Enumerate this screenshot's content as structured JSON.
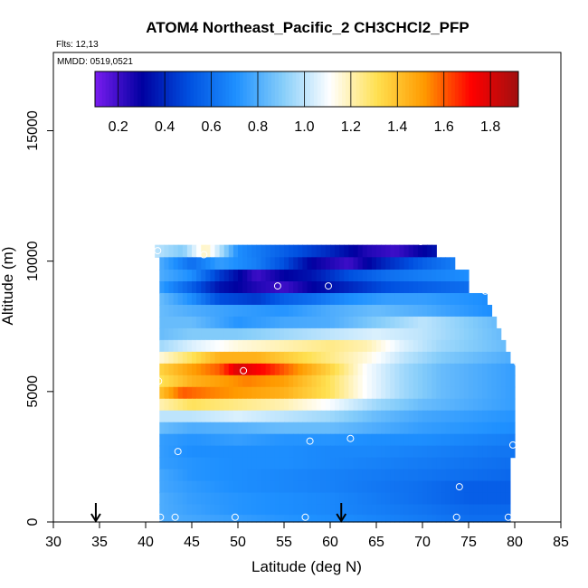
{
  "header": {
    "title": "ATOM4 Northeast_Pacific_2 CH3CHCl2_PFP",
    "flights": "Flts: 12,13",
    "dates": "MMDD: 0519,0521"
  },
  "chart_data": {
    "type": "heatmap",
    "title": "ATOM4 Northeast_Pacific_2 CH3CHCl2_PFP",
    "xlabel": "Latitude (deg N)",
    "ylabel": "Altitude (m)",
    "xlim": [
      30,
      85
    ],
    "ylim": [
      0,
      18000
    ],
    "x_ticks": [
      "30",
      "35",
      "40",
      "45",
      "50",
      "55",
      "60",
      "65",
      "70",
      "75",
      "80",
      "85"
    ],
    "y_ticks": [
      "0",
      "5000",
      "10000",
      "15000"
    ],
    "colorbar": {
      "range": [
        0.1,
        1.92
      ],
      "ticks": [
        "0.2",
        "0.4",
        "0.6",
        "0.8",
        "1.0",
        "1.2",
        "1.4",
        "1.6",
        "1.8"
      ],
      "tick_values": [
        0.2,
        0.4,
        0.6,
        0.8,
        1.0,
        1.2,
        1.4,
        1.6,
        1.8
      ],
      "colors": [
        "#7a1cf0",
        "#0000a0",
        "#0050e0",
        "#1e90ff",
        "#87cefa",
        "#ffffff",
        "#ffe050",
        "#ff9a00",
        "#ff0000",
        "#a01010"
      ]
    },
    "arrows_lat": [
      34.6,
      61.2
    ],
    "bands": [
      {
        "alt": 10400,
        "lat": [
          41.0,
          71.5
        ],
        "knots": [
          [
            41,
            1.0
          ],
          [
            44,
            0.9
          ],
          [
            46.5,
            1.2
          ],
          [
            48,
            1.0
          ],
          [
            50,
            0.7
          ],
          [
            55,
            0.55
          ],
          [
            60,
            0.4
          ],
          [
            64,
            0.25
          ],
          [
            67,
            0.2
          ],
          [
            71.5,
            0.35
          ]
        ]
      },
      {
        "alt": 9900,
        "lat": [
          41.5,
          73.5
        ],
        "knots": [
          [
            41.5,
            0.8
          ],
          [
            45,
            0.6
          ],
          [
            48,
            0.75
          ],
          [
            52,
            0.65
          ],
          [
            55,
            0.5
          ],
          [
            58,
            0.3
          ],
          [
            62,
            0.2
          ],
          [
            66,
            0.4
          ],
          [
            70,
            0.55
          ],
          [
            73.5,
            0.65
          ]
        ]
      },
      {
        "alt": 9450,
        "lat": [
          41.5,
          75.0
        ],
        "knots": [
          [
            41.5,
            0.8
          ],
          [
            45,
            0.7
          ],
          [
            48,
            0.45
          ],
          [
            52,
            0.2
          ],
          [
            55,
            0.3
          ],
          [
            58,
            0.35
          ],
          [
            62,
            0.5
          ],
          [
            66,
            0.6
          ],
          [
            70,
            0.65
          ],
          [
            75,
            0.7
          ]
        ]
      },
      {
        "alt": 9000,
        "lat": [
          41.5,
          75.0
        ],
        "knots": [
          [
            41.5,
            0.75
          ],
          [
            45,
            0.55
          ],
          [
            48,
            0.35
          ],
          [
            52,
            0.25
          ],
          [
            55,
            0.2
          ],
          [
            58,
            0.3
          ],
          [
            62,
            0.4
          ],
          [
            66,
            0.5
          ],
          [
            70,
            0.55
          ],
          [
            75,
            0.6
          ]
        ]
      },
      {
        "alt": 8550,
        "lat": [
          41.5,
          77.0
        ],
        "knots": [
          [
            41.5,
            0.85
          ],
          [
            45,
            0.7
          ],
          [
            48,
            0.5
          ],
          [
            52,
            0.45
          ],
          [
            55,
            0.55
          ],
          [
            58,
            0.6
          ],
          [
            62,
            0.7
          ],
          [
            66,
            0.75
          ],
          [
            70,
            0.75
          ],
          [
            77,
            0.7
          ]
        ]
      },
      {
        "alt": 8100,
        "lat": [
          41.5,
          77.5
        ],
        "knots": [
          [
            41.5,
            0.85
          ],
          [
            45,
            0.8
          ],
          [
            50,
            0.75
          ],
          [
            55,
            0.72
          ],
          [
            60,
            0.8
          ],
          [
            65,
            0.85
          ],
          [
            70,
            0.8
          ],
          [
            77.5,
            0.7
          ]
        ]
      },
      {
        "alt": 7650,
        "lat": [
          41.5,
          78.0
        ],
        "knots": [
          [
            41.5,
            0.85
          ],
          [
            45,
            0.85
          ],
          [
            50,
            0.72
          ],
          [
            55,
            0.78
          ],
          [
            60,
            0.8
          ],
          [
            65,
            0.9
          ],
          [
            70,
            1.0
          ],
          [
            78,
            0.85
          ]
        ]
      },
      {
        "alt": 7200,
        "lat": [
          41.5,
          78.5
        ],
        "knots": [
          [
            41.5,
            0.85
          ],
          [
            45,
            0.9
          ],
          [
            50,
            0.9
          ],
          [
            55,
            0.95
          ],
          [
            60,
            1.0
          ],
          [
            65,
            1.05
          ],
          [
            70,
            1.0
          ],
          [
            78.5,
            0.85
          ]
        ]
      },
      {
        "alt": 6750,
        "lat": [
          41.5,
          79.0
        ],
        "knots": [
          [
            41.5,
            0.95
          ],
          [
            45,
            1.05
          ],
          [
            50,
            1.15
          ],
          [
            55,
            1.2
          ],
          [
            60,
            1.25
          ],
          [
            64,
            1.2
          ],
          [
            68,
            1.05
          ],
          [
            72,
            0.95
          ],
          [
            79,
            0.85
          ]
        ]
      },
      {
        "alt": 6300,
        "lat": [
          41.5,
          79.5
        ],
        "knots": [
          [
            41.5,
            1.15
          ],
          [
            45,
            1.3
          ],
          [
            48,
            1.45
          ],
          [
            52,
            1.45
          ],
          [
            56,
            1.35
          ],
          [
            60,
            1.25
          ],
          [
            64,
            1.15
          ],
          [
            68,
            1.0
          ],
          [
            72,
            0.9
          ],
          [
            79.5,
            0.8
          ]
        ]
      },
      {
        "alt": 5850,
        "lat": [
          41.5,
          80.0
        ],
        "knots": [
          [
            41.5,
            1.35
          ],
          [
            45,
            1.5
          ],
          [
            48,
            1.6
          ],
          [
            50,
            1.8
          ],
          [
            53,
            1.7
          ],
          [
            56,
            1.55
          ],
          [
            60,
            1.35
          ],
          [
            64,
            1.1
          ],
          [
            68,
            0.95
          ],
          [
            72,
            0.85
          ],
          [
            80,
            0.75
          ]
        ]
      },
      {
        "alt": 5400,
        "lat": [
          41.5,
          80.0
        ],
        "knots": [
          [
            41.5,
            1.3
          ],
          [
            45,
            1.45
          ],
          [
            48,
            1.5
          ],
          [
            51,
            1.55
          ],
          [
            55,
            1.5
          ],
          [
            60,
            1.3
          ],
          [
            64,
            1.1
          ],
          [
            68,
            0.95
          ],
          [
            72,
            0.85
          ],
          [
            80,
            0.75
          ]
        ]
      },
      {
        "alt": 4950,
        "lat": [
          41.5,
          80.0
        ],
        "knots": [
          [
            41.5,
            1.4
          ],
          [
            44,
            1.6
          ],
          [
            47,
            1.55
          ],
          [
            51,
            1.5
          ],
          [
            55,
            1.45
          ],
          [
            60,
            1.3
          ],
          [
            64,
            1.1
          ],
          [
            68,
            0.95
          ],
          [
            72,
            0.85
          ],
          [
            80,
            0.75
          ]
        ]
      },
      {
        "alt": 4500,
        "lat": [
          41.5,
          80.0
        ],
        "knots": [
          [
            41.5,
            1.2
          ],
          [
            45,
            1.3
          ],
          [
            50,
            1.25
          ],
          [
            55,
            1.2
          ],
          [
            60,
            1.1
          ],
          [
            65,
            0.95
          ],
          [
            70,
            0.85
          ],
          [
            80,
            0.75
          ]
        ]
      },
      {
        "alt": 4050,
        "lat": [
          41.5,
          80.0
        ],
        "knots": [
          [
            41.5,
            1.0
          ],
          [
            45,
            1.0
          ],
          [
            50,
            1.05
          ],
          [
            55,
            1.0
          ],
          [
            60,
            0.95
          ],
          [
            65,
            0.85
          ],
          [
            70,
            0.78
          ],
          [
            80,
            0.72
          ]
        ]
      },
      {
        "alt": 3600,
        "lat": [
          41.5,
          80.0
        ],
        "knots": [
          [
            41.5,
            0.85
          ],
          [
            45,
            0.8
          ],
          [
            50,
            0.82
          ],
          [
            55,
            0.85
          ],
          [
            60,
            0.85
          ],
          [
            65,
            0.8
          ],
          [
            70,
            0.75
          ],
          [
            80,
            0.7
          ]
        ]
      },
      {
        "alt": 3150,
        "lat": [
          41.5,
          80.0
        ],
        "knots": [
          [
            41.5,
            0.75
          ],
          [
            45,
            0.72
          ],
          [
            50,
            0.75
          ],
          [
            55,
            0.72
          ],
          [
            60,
            0.72
          ],
          [
            65,
            0.7
          ],
          [
            70,
            0.7
          ],
          [
            80,
            0.65
          ]
        ]
      },
      {
        "alt": 2700,
        "lat": [
          41.5,
          80.0
        ],
        "knots": [
          [
            41.5,
            0.75
          ],
          [
            45,
            0.7
          ],
          [
            50,
            0.7
          ],
          [
            55,
            0.7
          ],
          [
            60,
            0.68
          ],
          [
            65,
            0.68
          ],
          [
            70,
            0.66
          ],
          [
            80,
            0.62
          ]
        ]
      },
      {
        "alt": 2250,
        "lat": [
          41.5,
          79.5
        ],
        "knots": [
          [
            41.5,
            0.75
          ],
          [
            45,
            0.72
          ],
          [
            50,
            0.7
          ],
          [
            55,
            0.7
          ],
          [
            60,
            0.68
          ],
          [
            65,
            0.66
          ],
          [
            70,
            0.64
          ],
          [
            79.5,
            0.6
          ]
        ]
      },
      {
        "alt": 1800,
        "lat": [
          41.5,
          79.5
        ],
        "knots": [
          [
            41.5,
            0.78
          ],
          [
            45,
            0.72
          ],
          [
            50,
            0.7
          ],
          [
            55,
            0.68
          ],
          [
            60,
            0.66
          ],
          [
            65,
            0.64
          ],
          [
            70,
            0.62
          ],
          [
            79.5,
            0.58
          ]
        ]
      },
      {
        "alt": 1350,
        "lat": [
          41.5,
          79.5
        ],
        "knots": [
          [
            41.5,
            0.78
          ],
          [
            45,
            0.74
          ],
          [
            50,
            0.7
          ],
          [
            55,
            0.68
          ],
          [
            60,
            0.66
          ],
          [
            65,
            0.63
          ],
          [
            70,
            0.6
          ],
          [
            75,
            0.55
          ],
          [
            79.5,
            0.55
          ]
        ]
      },
      {
        "alt": 900,
        "lat": [
          41.5,
          79.5
        ],
        "knots": [
          [
            41.5,
            0.8
          ],
          [
            45,
            0.75
          ],
          [
            50,
            0.72
          ],
          [
            55,
            0.7
          ],
          [
            60,
            0.68
          ],
          [
            65,
            0.64
          ],
          [
            70,
            0.6
          ],
          [
            75,
            0.55
          ],
          [
            79.5,
            0.55
          ]
        ]
      },
      {
        "alt": 450,
        "lat": [
          41.5,
          79.5
        ],
        "knots": [
          [
            41.5,
            0.8
          ],
          [
            45,
            0.76
          ],
          [
            50,
            0.72
          ],
          [
            55,
            0.7
          ],
          [
            60,
            0.68
          ],
          [
            65,
            0.65
          ],
          [
            70,
            0.62
          ],
          [
            75,
            0.58
          ],
          [
            79.5,
            0.58
          ]
        ]
      },
      {
        "alt": 100,
        "lat": [
          41.5,
          79.5
        ],
        "knots": [
          [
            41.5,
            0.8
          ],
          [
            45,
            0.78
          ],
          [
            50,
            0.75
          ],
          [
            55,
            0.72
          ],
          [
            60,
            0.7
          ],
          [
            65,
            0.67
          ],
          [
            70,
            0.64
          ],
          [
            75,
            0.6
          ],
          [
            79.5,
            0.6
          ]
        ]
      }
    ],
    "samples": [
      {
        "lat": 41.3,
        "alt": 10400
      },
      {
        "lat": 46.3,
        "alt": 10250
      },
      {
        "lat": 69.8,
        "alt": 10750
      },
      {
        "lat": 54.3,
        "alt": 9050
      },
      {
        "lat": 59.8,
        "alt": 9050
      },
      {
        "lat": 76.8,
        "alt": 8850
      },
      {
        "lat": 80.3,
        "alt": 6100
      },
      {
        "lat": 50.6,
        "alt": 5800
      },
      {
        "lat": 41.4,
        "alt": 5400
      },
      {
        "lat": 57.8,
        "alt": 3100
      },
      {
        "lat": 62.2,
        "alt": 3200
      },
      {
        "lat": 43.5,
        "alt": 2700
      },
      {
        "lat": 79.8,
        "alt": 2950
      },
      {
        "lat": 74.0,
        "alt": 1350
      },
      {
        "lat": 41.6,
        "alt": 180
      },
      {
        "lat": 43.2,
        "alt": 180
      },
      {
        "lat": 49.7,
        "alt": 180
      },
      {
        "lat": 57.3,
        "alt": 180
      },
      {
        "lat": 73.7,
        "alt": 180
      },
      {
        "lat": 79.3,
        "alt": 180
      }
    ]
  }
}
